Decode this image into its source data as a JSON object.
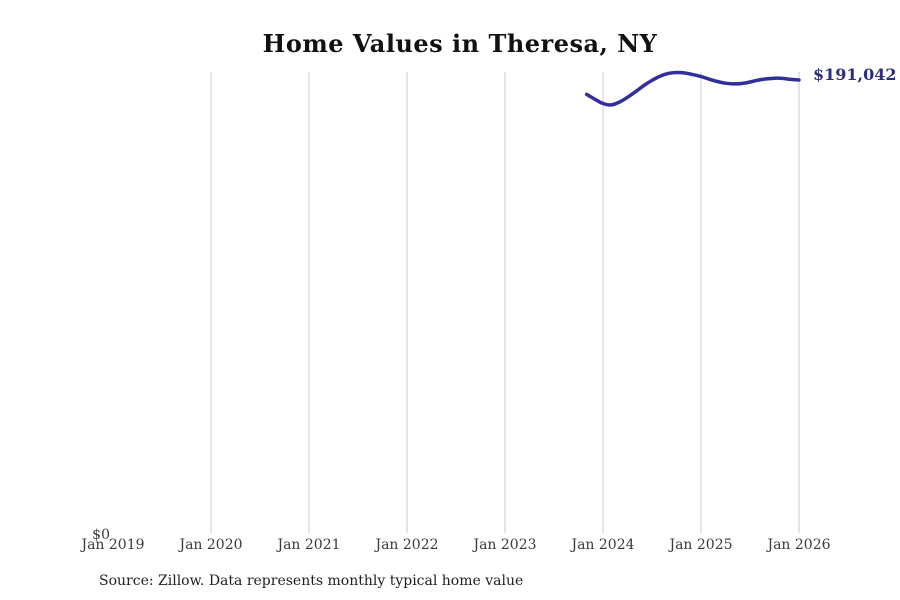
{
  "page": {
    "source_note": "Source: Zillow. Data represents monthly typical home value"
  },
  "colors": {
    "line": "#322e9c",
    "end_label_text": "#2b2d7e",
    "grid": "#cbcbcb",
    "tick_text": "#3a3a3a",
    "title_text": "#111111"
  },
  "chart_data": {
    "type": "line",
    "title": "Home Values in Theresa, NY",
    "xlabel": "",
    "ylabel": "",
    "x_ticks": [
      "Jan 2019",
      "Jan 2020",
      "Jan 2021",
      "Jan 2022",
      "Jan 2023",
      "Jan 2024",
      "Jan 2025",
      "Jan 2026"
    ],
    "y_ticks": [
      "$0"
    ],
    "ylim": [
      0,
      194400
    ],
    "grid": "vertical-only, no gridline at Jan 2019",
    "legend": "none",
    "end_label": "$191,042",
    "latest_value": 191042,
    "series": [
      {
        "name": "Typical home value",
        "x": [
          "Nov 2023",
          "Dec 2023",
          "Jan 2024",
          "Feb 2024",
          "Mar 2024",
          "Apr 2024",
          "May 2024",
          "Jun 2024",
          "Jul 2024",
          "Aug 2024",
          "Sep 2024",
          "Oct 2024",
          "Nov 2024",
          "Dec 2024",
          "Jan 2025",
          "Feb 2025",
          "Mar 2025",
          "Apr 2025",
          "May 2025",
          "Jun 2025",
          "Jul 2025",
          "Aug 2025",
          "Sep 2025",
          "Oct 2025",
          "Nov 2025",
          "Dec 2025",
          "Jan 2026"
        ],
        "values": [
          185000,
          183000,
          181200,
          180600,
          181800,
          183800,
          186200,
          188700,
          190900,
          192700,
          193800,
          194200,
          194000,
          193300,
          192500,
          191400,
          190400,
          189700,
          189400,
          189600,
          190200,
          191000,
          191500,
          191800,
          191700,
          191300,
          191042
        ]
      }
    ]
  }
}
